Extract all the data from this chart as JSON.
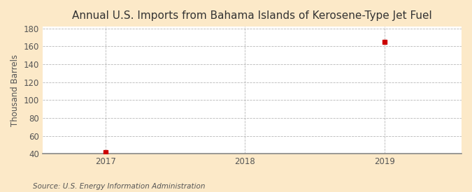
{
  "title": "Annual U.S. Imports from Bahama Islands of Kerosene-Type Jet Fuel",
  "ylabel": "Thousand Barrels",
  "source": "Source: U.S. Energy Information Administration",
  "x": [
    2017,
    2019
  ],
  "y": [
    42,
    165
  ],
  "xlim": [
    2016.55,
    2019.55
  ],
  "ylim": [
    40,
    182
  ],
  "yticks": [
    40,
    60,
    80,
    100,
    120,
    140,
    160,
    180
  ],
  "xticks": [
    2017,
    2018,
    2019
  ],
  "marker_color": "#cc0000",
  "marker": "s",
  "marker_size": 4,
  "bg_outer": "#fce9c8",
  "bg_inner": "#ffffff",
  "grid_color": "#999999",
  "title_fontsize": 11,
  "label_fontsize": 8.5,
  "tick_fontsize": 8.5,
  "source_fontsize": 7.5
}
